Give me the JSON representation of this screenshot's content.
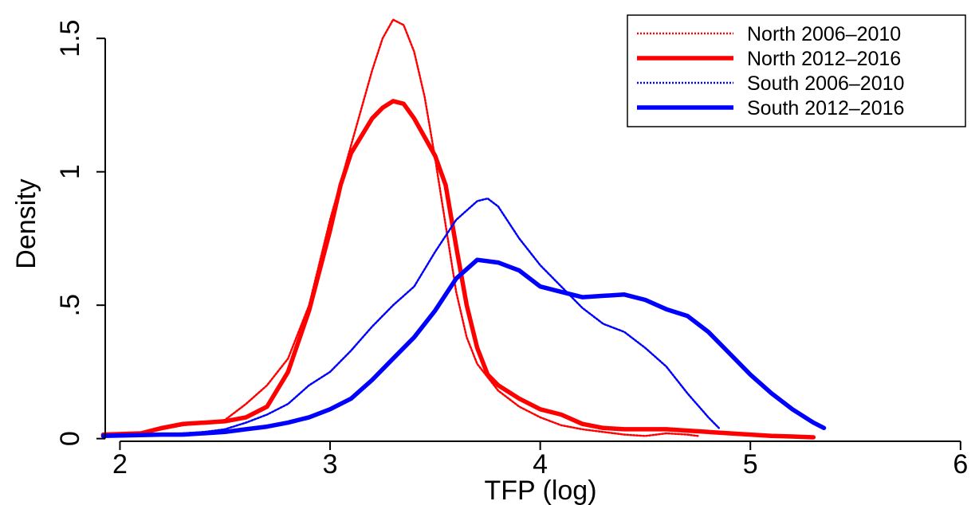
{
  "chart_data": {
    "type": "line",
    "title": "",
    "xlabel": "TFP (log)",
    "ylabel": "Density",
    "xlim": [
      1.93,
      6.05
    ],
    "ylim": [
      -0.01,
      1.62
    ],
    "xticks": [
      {
        "value": 2,
        "label": "2"
      },
      {
        "value": 3,
        "label": "3"
      },
      {
        "value": 4,
        "label": "4"
      },
      {
        "value": 5,
        "label": "5"
      },
      {
        "value": 6,
        "label": "6"
      }
    ],
    "yticks": [
      {
        "value": 0,
        "label": "0"
      },
      {
        "value": 0.5,
        "label": ".5"
      },
      {
        "value": 1,
        "label": "1"
      },
      {
        "value": 1.5,
        "label": "1.5"
      }
    ],
    "grid": false,
    "legend_position": "top-right",
    "series": [
      {
        "name": "North 2006–2010",
        "color": "#ff0000",
        "style": "dotted",
        "points": [
          [
            1.92,
            0.015
          ],
          [
            2.1,
            0.02
          ],
          [
            2.3,
            0.05
          ],
          [
            2.5,
            0.07
          ],
          [
            2.6,
            0.13
          ],
          [
            2.7,
            0.2
          ],
          [
            2.8,
            0.3
          ],
          [
            2.9,
            0.5
          ],
          [
            3.0,
            0.82
          ],
          [
            3.1,
            1.1
          ],
          [
            3.2,
            1.38
          ],
          [
            3.25,
            1.5
          ],
          [
            3.3,
            1.57
          ],
          [
            3.35,
            1.55
          ],
          [
            3.4,
            1.45
          ],
          [
            3.45,
            1.28
          ],
          [
            3.5,
            1.05
          ],
          [
            3.55,
            0.8
          ],
          [
            3.6,
            0.55
          ],
          [
            3.65,
            0.38
          ],
          [
            3.7,
            0.28
          ],
          [
            3.8,
            0.18
          ],
          [
            3.9,
            0.12
          ],
          [
            4.0,
            0.08
          ],
          [
            4.1,
            0.05
          ],
          [
            4.2,
            0.035
          ],
          [
            4.3,
            0.025
          ],
          [
            4.4,
            0.015
          ],
          [
            4.5,
            0.01
          ],
          [
            4.6,
            0.02
          ],
          [
            4.7,
            0.015
          ],
          [
            4.75,
            0.01
          ]
        ]
      },
      {
        "name": "North 2012–2016",
        "color": "#ff0000",
        "style": "solid",
        "points": [
          [
            1.92,
            0.015
          ],
          [
            2.1,
            0.02
          ],
          [
            2.2,
            0.04
          ],
          [
            2.3,
            0.055
          ],
          [
            2.4,
            0.06
          ],
          [
            2.5,
            0.065
          ],
          [
            2.6,
            0.08
          ],
          [
            2.7,
            0.12
          ],
          [
            2.8,
            0.25
          ],
          [
            2.9,
            0.48
          ],
          [
            3.0,
            0.78
          ],
          [
            3.05,
            0.95
          ],
          [
            3.1,
            1.07
          ],
          [
            3.2,
            1.2
          ],
          [
            3.25,
            1.24
          ],
          [
            3.3,
            1.265
          ],
          [
            3.35,
            1.255
          ],
          [
            3.4,
            1.2
          ],
          [
            3.5,
            1.06
          ],
          [
            3.55,
            0.95
          ],
          [
            3.6,
            0.72
          ],
          [
            3.65,
            0.5
          ],
          [
            3.7,
            0.34
          ],
          [
            3.75,
            0.24
          ],
          [
            3.8,
            0.2
          ],
          [
            3.9,
            0.15
          ],
          [
            4.0,
            0.11
          ],
          [
            4.1,
            0.09
          ],
          [
            4.2,
            0.055
          ],
          [
            4.3,
            0.04
          ],
          [
            4.4,
            0.035
          ],
          [
            4.5,
            0.035
          ],
          [
            4.6,
            0.035
          ],
          [
            4.7,
            0.03
          ],
          [
            4.8,
            0.025
          ],
          [
            4.9,
            0.02
          ],
          [
            5.0,
            0.015
          ],
          [
            5.1,
            0.01
          ],
          [
            5.2,
            0.008
          ],
          [
            5.3,
            0.005
          ]
        ]
      },
      {
        "name": "South 2006–2010",
        "color": "#0000ff",
        "style": "dotted",
        "points": [
          [
            1.92,
            0.01
          ],
          [
            2.2,
            0.015
          ],
          [
            2.3,
            0.02
          ],
          [
            2.4,
            0.025
          ],
          [
            2.5,
            0.035
          ],
          [
            2.6,
            0.06
          ],
          [
            2.7,
            0.09
          ],
          [
            2.8,
            0.13
          ],
          [
            2.9,
            0.2
          ],
          [
            3.0,
            0.25
          ],
          [
            3.1,
            0.33
          ],
          [
            3.2,
            0.42
          ],
          [
            3.3,
            0.5
          ],
          [
            3.4,
            0.57
          ],
          [
            3.5,
            0.7
          ],
          [
            3.6,
            0.82
          ],
          [
            3.7,
            0.89
          ],
          [
            3.75,
            0.9
          ],
          [
            3.8,
            0.87
          ],
          [
            3.9,
            0.75
          ],
          [
            4.0,
            0.65
          ],
          [
            4.1,
            0.57
          ],
          [
            4.2,
            0.49
          ],
          [
            4.3,
            0.43
          ],
          [
            4.4,
            0.4
          ],
          [
            4.5,
            0.34
          ],
          [
            4.6,
            0.27
          ],
          [
            4.7,
            0.17
          ],
          [
            4.8,
            0.08
          ],
          [
            4.85,
            0.04
          ]
        ]
      },
      {
        "name": "South 2012–2016",
        "color": "#0000ff",
        "style": "solid",
        "points": [
          [
            1.92,
            0.01
          ],
          [
            2.2,
            0.015
          ],
          [
            2.3,
            0.015
          ],
          [
            2.4,
            0.02
          ],
          [
            2.5,
            0.025
          ],
          [
            2.6,
            0.035
          ],
          [
            2.7,
            0.045
          ],
          [
            2.8,
            0.06
          ],
          [
            2.9,
            0.08
          ],
          [
            3.0,
            0.11
          ],
          [
            3.1,
            0.15
          ],
          [
            3.2,
            0.22
          ],
          [
            3.3,
            0.3
          ],
          [
            3.4,
            0.38
          ],
          [
            3.5,
            0.48
          ],
          [
            3.6,
            0.6
          ],
          [
            3.7,
            0.67
          ],
          [
            3.8,
            0.66
          ],
          [
            3.9,
            0.63
          ],
          [
            4.0,
            0.57
          ],
          [
            4.1,
            0.55
          ],
          [
            4.2,
            0.53
          ],
          [
            4.3,
            0.535
          ],
          [
            4.4,
            0.54
          ],
          [
            4.5,
            0.52
          ],
          [
            4.6,
            0.485
          ],
          [
            4.7,
            0.46
          ],
          [
            4.8,
            0.4
          ],
          [
            4.9,
            0.32
          ],
          [
            5.0,
            0.24
          ],
          [
            5.1,
            0.17
          ],
          [
            5.2,
            0.11
          ],
          [
            5.3,
            0.06
          ],
          [
            5.35,
            0.04
          ]
        ]
      }
    ]
  }
}
